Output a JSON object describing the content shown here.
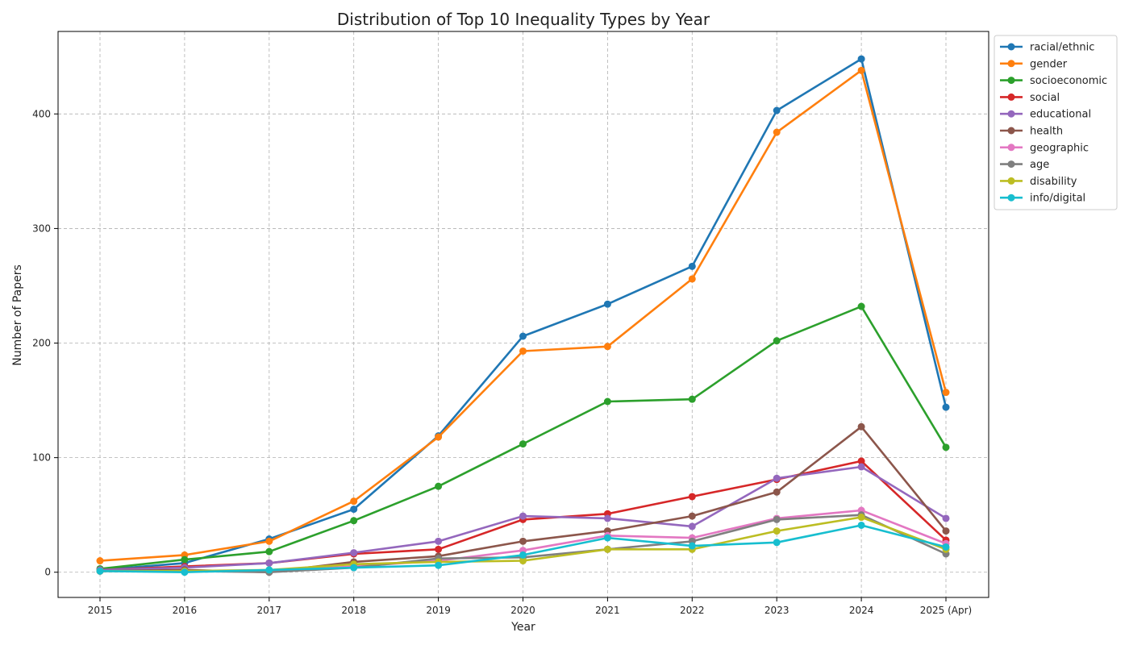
{
  "chart_data": {
    "type": "line",
    "title": "Distribution of Top 10 Inequality Types by Year",
    "xlabel": "Year",
    "ylabel": "Number of Papers",
    "categories": [
      "2015",
      "2016",
      "2017",
      "2018",
      "2019",
      "2020",
      "2021",
      "2022",
      "2023",
      "2024",
      "2025 (Apr)"
    ],
    "ylim": [
      -22,
      472
    ],
    "yticks": [
      0,
      100,
      200,
      300,
      400
    ],
    "grid": true,
    "legend_position": "outside-top-right",
    "series": [
      {
        "name": "racial/ethnic",
        "color": "#1f77b4",
        "values": [
          2,
          8,
          29,
          55,
          119,
          206,
          234,
          267,
          403,
          448,
          144
        ]
      },
      {
        "name": "gender",
        "color": "#ff7f0e",
        "values": [
          10,
          15,
          27,
          62,
          118,
          193,
          197,
          256,
          384,
          438,
          157
        ]
      },
      {
        "name": "socioeconomic",
        "color": "#2ca02c",
        "values": [
          3,
          11,
          18,
          45,
          75,
          112,
          149,
          151,
          202,
          232,
          109
        ]
      },
      {
        "name": "social",
        "color": "#d62728",
        "values": [
          2,
          5,
          8,
          16,
          20,
          46,
          51,
          66,
          81,
          97,
          28
        ]
      },
      {
        "name": "educational",
        "color": "#9467bd",
        "values": [
          2,
          4,
          8,
          17,
          27,
          49,
          47,
          40,
          82,
          92,
          47
        ]
      },
      {
        "name": "health",
        "color": "#8c564b",
        "values": [
          1,
          2,
          0,
          9,
          14,
          27,
          36,
          49,
          70,
          127,
          36
        ]
      },
      {
        "name": "geographic",
        "color": "#e377c2",
        "values": [
          1,
          1,
          1,
          5,
          10,
          19,
          32,
          30,
          47,
          54,
          25
        ]
      },
      {
        "name": "age",
        "color": "#7f7f7f",
        "values": [
          1,
          1,
          0,
          4,
          12,
          13,
          20,
          27,
          46,
          50,
          16
        ]
      },
      {
        "name": "disability",
        "color": "#bcbd22",
        "values": [
          1,
          1,
          2,
          7,
          9,
          10,
          20,
          20,
          36,
          48,
          20
        ]
      },
      {
        "name": "info/digital",
        "color": "#17becf",
        "values": [
          1,
          0,
          2,
          4,
          6,
          15,
          30,
          23,
          26,
          41,
          22
        ]
      }
    ]
  }
}
